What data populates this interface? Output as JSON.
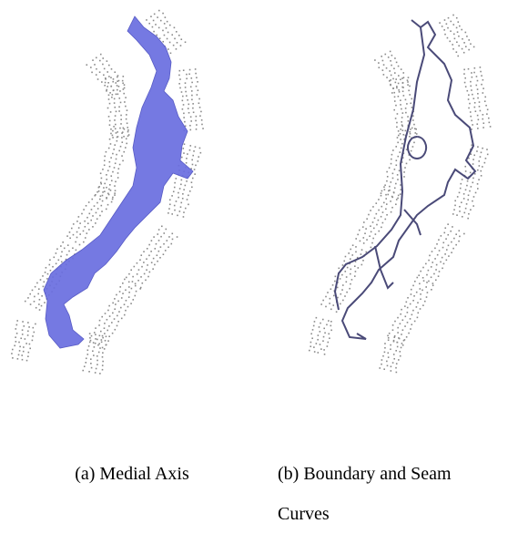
{
  "figure": {
    "captions": [
      "(a) Medial Axis",
      "(b) Boundary and Seam Curves"
    ]
  }
}
